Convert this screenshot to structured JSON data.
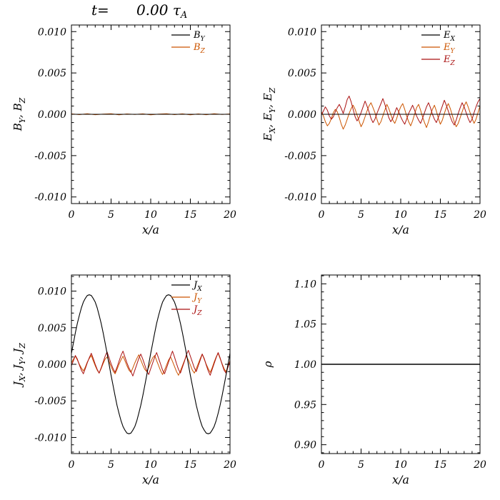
{
  "title": {
    "prefix": "t=",
    "value": "      0.00 ",
    "tau": "τ",
    "tau_sub": "A"
  },
  "colors": {
    "axis": "#000000",
    "black": "#000000",
    "orange": "#cc5500",
    "red": "#aa1111",
    "background": "#ffffff"
  },
  "chart_data": [
    {
      "id": "panel-b",
      "name": "magnetic-field",
      "type": "line",
      "xlabel_parts": [
        {
          "t": "x/a"
        }
      ],
      "ylabel_parts": [
        {
          "t": "B",
          "s": "Y"
        },
        {
          "t": ",  "
        },
        {
          "t": "B",
          "s": "Z"
        }
      ],
      "xlim": [
        0,
        20
      ],
      "ylim": [
        -0.0108,
        0.0108
      ],
      "xticks": [
        0,
        5,
        10,
        15,
        20
      ],
      "xtick_labels": [
        "0",
        "5",
        "10",
        "15",
        "20"
      ],
      "x_minor": 1,
      "yticks": [
        -0.01,
        -0.005,
        0,
        0.005,
        0.01
      ],
      "ytick_labels": [
        "-0.010",
        "-0.005",
        "0.000",
        "0.005",
        "0.010"
      ],
      "y_minor": 0.001,
      "legend": [
        {
          "label": [
            {
              "t": "B",
              "s": "Y"
            }
          ],
          "color": "#000000"
        },
        {
          "label": [
            {
              "t": "B",
              "s": "Z"
            }
          ],
          "color": "#cc5500"
        }
      ],
      "series": [
        {
          "name": "B_Z",
          "color": "#cc5500",
          "width": 1,
          "scale": 0.001,
          "x_start": 0,
          "x_end": 20,
          "values": [
            0.05,
            -0.04,
            0.06,
            -0.05,
            0.03,
            0.06,
            -0.06,
            0.04,
            -0.03,
            0.05,
            -0.06,
            0.03,
            0.06,
            -0.04,
            0.05,
            -0.06,
            0.04,
            -0.05,
            0.06,
            -0.03,
            0.04
          ]
        },
        {
          "name": "B_Y",
          "color": "#000000",
          "width": 1,
          "scale": 0.001,
          "x": [
            0,
            20
          ],
          "values": [
            0,
            0
          ]
        }
      ]
    },
    {
      "id": "panel-e",
      "name": "electric-field",
      "type": "line",
      "xlabel_parts": [
        {
          "t": "x/a"
        }
      ],
      "ylabel_parts": [
        {
          "t": "E",
          "s": "X"
        },
        {
          "t": ",  "
        },
        {
          "t": "E",
          "s": "Y"
        },
        {
          "t": ",  "
        },
        {
          "t": "E",
          "s": "Z"
        }
      ],
      "xlim": [
        0,
        20
      ],
      "ylim": [
        -0.0108,
        0.0108
      ],
      "xticks": [
        0,
        5,
        10,
        15,
        20
      ],
      "xtick_labels": [
        "0",
        "5",
        "10",
        "15",
        "20"
      ],
      "x_minor": 1,
      "yticks": [
        -0.01,
        -0.005,
        0,
        0.005,
        0.01
      ],
      "ytick_labels": [
        "-0.010",
        "-0.005",
        "0.000",
        "0.005",
        "0.010"
      ],
      "y_minor": 0.001,
      "legend": [
        {
          "label": [
            {
              "t": "E",
              "s": "X"
            }
          ],
          "color": "#000000"
        },
        {
          "label": [
            {
              "t": "E",
              "s": "Y"
            }
          ],
          "color": "#cc5500"
        },
        {
          "label": [
            {
              "t": "E",
              "s": "Z"
            }
          ],
          "color": "#aa1111"
        }
      ],
      "series": [
        {
          "name": "E_Y",
          "color": "#cc5500",
          "width": 1,
          "scale": 0.001,
          "x_start": 0,
          "x_end": 20,
          "values": [
            0.3,
            -0.2,
            -0.9,
            -1.4,
            -1.1,
            -0.5,
            0.2,
            0.6,
            0.3,
            -0.4,
            -1.2,
            -1.8,
            -1.3,
            -0.6,
            0.1,
            0.7,
            1.1,
            0.6,
            -0.1,
            -0.8,
            -1.5,
            -1.0,
            -0.3,
            0.4,
            1.0,
            1.4,
            0.8,
            0.2,
            -0.6,
            -1.3,
            -0.9,
            -0.2,
            0.5,
            1.2,
            0.7,
            0.0,
            -0.7,
            -1.1,
            -0.5,
            0.3,
            0.9,
            1.3,
            0.6,
            -0.2,
            -0.9,
            -1.4,
            -0.8,
            0.0,
            0.8,
            1.2,
            0.5,
            -0.3,
            -1.0,
            -1.6,
            -0.9,
            -0.1,
            0.6,
            1.1,
            0.4,
            -0.5,
            -1.2,
            -0.7,
            0.1,
            0.8,
            1.3,
            0.7,
            -0.1,
            -0.9,
            -1.5,
            -1.1,
            -0.4,
            0.3,
            1.0,
            1.5,
            0.9,
            0.2,
            -0.5,
            -1.1,
            -0.6,
            0.2,
            1.0
          ]
        },
        {
          "name": "E_Z",
          "color": "#aa1111",
          "width": 1,
          "scale": 0.001,
          "x_start": 0,
          "x_end": 20,
          "values": [
            -0.1,
            0.4,
            0.9,
            0.5,
            -0.2,
            -0.6,
            -0.3,
            0.3,
            0.8,
            1.2,
            0.7,
            0.1,
            0.9,
            1.8,
            2.2,
            1.5,
            0.6,
            -0.3,
            -0.8,
            -0.4,
            0.2,
            0.9,
            1.6,
            1.0,
            0.3,
            -0.5,
            -1.0,
            -0.6,
            0.1,
            0.7,
            1.3,
            1.9,
            1.2,
            0.4,
            -0.4,
            -0.9,
            -0.5,
            0.2,
            0.8,
            0.3,
            -0.3,
            -0.8,
            -1.2,
            -0.6,
            0.1,
            0.6,
            1.1,
            0.5,
            -0.2,
            -0.7,
            -1.1,
            -0.5,
            0.2,
            0.9,
            1.4,
            0.8,
            0.0,
            -0.6,
            -1.0,
            -0.4,
            0.3,
            1.0,
            1.7,
            1.1,
            0.4,
            -0.3,
            -0.9,
            -1.3,
            -0.7,
            0.1,
            0.8,
            1.4,
            0.9,
            0.2,
            -0.5,
            -1.0,
            -0.6,
            0.2,
            0.9,
            1.5,
            1.9
          ]
        },
        {
          "name": "E_X",
          "color": "#000000",
          "width": 1,
          "scale": 0.001,
          "x": [
            0,
            20
          ],
          "values": [
            0,
            0
          ]
        }
      ]
    },
    {
      "id": "panel-j",
      "name": "current-density",
      "type": "line",
      "xlabel_parts": [
        {
          "t": "x/a"
        }
      ],
      "ylabel_parts": [
        {
          "t": "J",
          "s": "X"
        },
        {
          "t": ",  "
        },
        {
          "t": "J",
          "s": "Y"
        },
        {
          "t": ",  "
        },
        {
          "t": "J",
          "s": "Z"
        }
      ],
      "xlim": [
        0,
        20
      ],
      "ylim": [
        -0.0122,
        0.0122
      ],
      "xticks": [
        0,
        5,
        10,
        15,
        20
      ],
      "xtick_labels": [
        "0",
        "5",
        "10",
        "15",
        "20"
      ],
      "x_minor": 1,
      "yticks": [
        -0.01,
        -0.005,
        0,
        0.005,
        0.01
      ],
      "ytick_labels": [
        "-0.010",
        "-0.005",
        "0.000",
        "0.005",
        "0.010"
      ],
      "y_minor": 0.001,
      "legend": [
        {
          "label": [
            {
              "t": "J",
              "s": "X"
            }
          ],
          "color": "#000000"
        },
        {
          "label": [
            {
              "t": "J",
              "s": "Y"
            }
          ],
          "color": "#cc5500"
        },
        {
          "label": [
            {
              "t": "J",
              "s": "Z"
            }
          ],
          "color": "#aa1111"
        }
      ],
      "series": [
        {
          "name": "J_Y",
          "color": "#cc5500",
          "width": 1,
          "scale": 0.001,
          "x_start": 0,
          "x_end": 20,
          "values": [
            0.2,
            0.7,
            1.1,
            0.6,
            0.0,
            -0.5,
            -0.9,
            -0.4,
            0.3,
            0.8,
            1.2,
            0.5,
            -0.2,
            -0.8,
            -1.2,
            -0.6,
            0.1,
            0.7,
            1.0,
            0.4,
            -0.3,
            -0.9,
            -1.3,
            -0.7,
            0.0,
            0.6,
            1.1,
            0.5,
            -0.2,
            -0.8,
            -1.1,
            -0.5,
            0.2,
            0.8,
            1.3,
            0.6,
            -0.1,
            -0.7,
            -1.0,
            -0.4,
            0.3,
            0.9,
            1.2,
            0.5,
            -0.2,
            -0.9,
            -1.4,
            -0.8,
            -0.1,
            0.6,
            1.0,
            0.4,
            -0.3,
            -1.0,
            -1.5,
            -0.9,
            -0.2,
            0.5,
            1.1,
            0.6,
            -0.1,
            -0.8,
            -1.2,
            -0.6,
            0.1,
            0.8,
            1.4,
            0.7,
            0.0,
            -0.6,
            -1.1,
            -0.5,
            0.3,
            1.0,
            1.5,
            0.8,
            0.1,
            -0.6,
            -1.0,
            -0.3,
            0.5
          ]
        },
        {
          "name": "J_Z",
          "color": "#aa1111",
          "width": 1,
          "scale": 0.001,
          "x_start": 0,
          "x_end": 20,
          "values": [
            -0.2,
            0.5,
            1.2,
            0.7,
            -0.1,
            -0.8,
            -1.3,
            -0.6,
            0.2,
            0.9,
            1.5,
            0.8,
            0.0,
            -0.7,
            -1.2,
            -0.5,
            0.3,
            1.1,
            1.7,
            0.9,
            0.1,
            -0.6,
            -1.1,
            -0.4,
            0.4,
            1.2,
            1.8,
            1.0,
            0.2,
            -0.5,
            -1.0,
            -1.6,
            -0.8,
            0.0,
            0.8,
            1.4,
            0.7,
            -0.1,
            -0.9,
            -1.4,
            -0.6,
            0.2,
            1.0,
            1.6,
            0.8,
            0.0,
            -0.8,
            -1.3,
            -0.5,
            0.3,
            1.1,
            1.8,
            1.0,
            0.1,
            -0.7,
            -1.2,
            -0.4,
            0.4,
            1.3,
            1.9,
            1.1,
            0.3,
            -0.5,
            -1.0,
            -0.2,
            0.6,
            1.4,
            0.8,
            -0.1,
            -0.9,
            -1.5,
            -0.7,
            0.1,
            0.9,
            1.6,
            0.9,
            0.0,
            -0.8,
            -1.2,
            -0.4,
            0.4
          ]
        },
        {
          "name": "J_X",
          "color": "#000000",
          "width": 1.1,
          "scale": 0.001,
          "x_start": 0,
          "x_end": 20,
          "values": [
            1.5,
            2.9,
            4.3,
            5.6,
            6.7,
            7.7,
            8.5,
            9.0,
            9.4,
            9.5,
            9.4,
            9.0,
            8.5,
            7.7,
            6.7,
            5.6,
            4.3,
            2.9,
            1.5,
            0.0,
            -1.5,
            -2.9,
            -4.3,
            -5.6,
            -6.7,
            -7.7,
            -8.5,
            -9.0,
            -9.4,
            -9.5,
            -9.4,
            -9.0,
            -8.5,
            -7.7,
            -6.7,
            -5.6,
            -4.3,
            -2.9,
            -1.5,
            0.0,
            1.5,
            2.9,
            4.3,
            5.6,
            6.7,
            7.7,
            8.5,
            9.0,
            9.4,
            9.5,
            9.4,
            9.0,
            8.5,
            7.7,
            6.7,
            5.6,
            4.3,
            2.9,
            1.5,
            0.0,
            -1.5,
            -2.9,
            -4.3,
            -5.6,
            -6.7,
            -7.7,
            -8.5,
            -9.0,
            -9.4,
            -9.5,
            -9.4,
            -9.0,
            -8.5,
            -7.7,
            -6.7,
            -5.6,
            -4.3,
            -2.9,
            -1.5,
            0.0,
            1.5
          ]
        }
      ]
    },
    {
      "id": "panel-rho",
      "name": "density",
      "type": "line",
      "xlabel_parts": [
        {
          "t": "x/a"
        }
      ],
      "ylabel_parts": [
        {
          "t": "ρ"
        }
      ],
      "xlim": [
        0,
        20
      ],
      "ylim": [
        0.889,
        1.111
      ],
      "xticks": [
        0,
        5,
        10,
        15,
        20
      ],
      "xtick_labels": [
        "0",
        "5",
        "10",
        "15",
        "20"
      ],
      "x_minor": 1,
      "yticks": [
        0.9,
        0.95,
        1.0,
        1.05,
        1.1
      ],
      "ytick_labels": [
        "0.90",
        "0.95",
        "1.00",
        "1.05",
        "1.10"
      ],
      "y_minor": 0.01,
      "legend": [],
      "series": [
        {
          "name": "rho",
          "color": "#000000",
          "width": 1.4,
          "scale": 1,
          "x": [
            0,
            20
          ],
          "values": [
            1.0,
            1.0
          ]
        }
      ]
    }
  ]
}
